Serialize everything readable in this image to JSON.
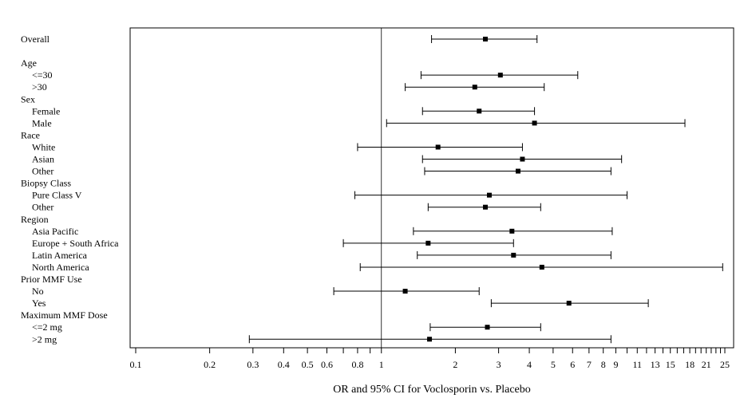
{
  "chart_data": {
    "type": "forest",
    "xlabel": "OR and 95% CI for Voclosporin vs. Placebo",
    "xscale": "log",
    "xlim": [
      0.095,
      26
    ],
    "reference_line": 1,
    "grid": false,
    "ticks": [
      {
        "value": 0.1,
        "label": "0.1"
      },
      {
        "value": 0.2,
        "label": "0.2"
      },
      {
        "value": 0.3,
        "label": "0.3"
      },
      {
        "value": 0.4,
        "label": "0.4"
      },
      {
        "value": 0.5,
        "label": "0.5"
      },
      {
        "value": 0.6,
        "label": "0.6"
      },
      {
        "value": 0.8,
        "label": "0.8"
      },
      {
        "value": 1,
        "label": "1"
      },
      {
        "value": 2,
        "label": "2"
      },
      {
        "value": 3,
        "label": "3"
      },
      {
        "value": 4,
        "label": "4"
      },
      {
        "value": 5,
        "label": "5"
      },
      {
        "value": 6,
        "label": "6"
      },
      {
        "value": 7,
        "label": "7"
      },
      {
        "value": 8,
        "label": "8"
      },
      {
        "value": 9,
        "label": "9"
      },
      {
        "value": 11,
        "label": "11"
      },
      {
        "value": 13,
        "label": "13"
      },
      {
        "value": 15,
        "label": "15"
      },
      {
        "value": 18,
        "label": "18"
      },
      {
        "value": 21,
        "label": "21"
      },
      {
        "value": 25,
        "label": "25"
      }
    ],
    "minor_ticks": [
      0.7,
      0.9,
      10,
      12,
      14,
      16,
      17,
      19,
      20,
      22,
      23,
      24
    ],
    "rows": [
      {
        "label": "Overall",
        "header": false,
        "indent": false,
        "or": 2.65,
        "lo": 1.6,
        "hi": 4.3
      },
      {
        "label": "",
        "header": true,
        "indent": false,
        "spacer": true
      },
      {
        "label": "Age",
        "header": true,
        "indent": false
      },
      {
        "label": "<=30",
        "header": false,
        "indent": true,
        "or": 3.05,
        "lo": 1.45,
        "hi": 6.3
      },
      {
        "label": ">30",
        "header": false,
        "indent": true,
        "or": 2.4,
        "lo": 1.25,
        "hi": 4.6
      },
      {
        "label": "Sex",
        "header": true,
        "indent": false
      },
      {
        "label": "Female",
        "header": false,
        "indent": true,
        "or": 2.5,
        "lo": 1.47,
        "hi": 4.2
      },
      {
        "label": "Male",
        "header": false,
        "indent": true,
        "or": 4.2,
        "lo": 1.05,
        "hi": 17.2
      },
      {
        "label": "Race",
        "header": true,
        "indent": false
      },
      {
        "label": "White",
        "header": false,
        "indent": true,
        "or": 1.7,
        "lo": 0.8,
        "hi": 3.75
      },
      {
        "label": "Asian",
        "header": false,
        "indent": true,
        "or": 3.75,
        "lo": 1.47,
        "hi": 9.5
      },
      {
        "label": "Other",
        "header": false,
        "indent": true,
        "or": 3.6,
        "lo": 1.5,
        "hi": 8.6
      },
      {
        "label": "Biopsy Class",
        "header": true,
        "indent": false
      },
      {
        "label": "Pure Class V",
        "header": false,
        "indent": true,
        "or": 2.75,
        "lo": 0.78,
        "hi": 10.0
      },
      {
        "label": "Other",
        "header": false,
        "indent": true,
        "or": 2.65,
        "lo": 1.55,
        "hi": 4.45
      },
      {
        "label": "Region",
        "header": true,
        "indent": false
      },
      {
        "label": "Asia Pacific",
        "header": false,
        "indent": true,
        "or": 3.4,
        "lo": 1.35,
        "hi": 8.7
      },
      {
        "label": "Europe + South Africa",
        "header": false,
        "indent": true,
        "or": 1.55,
        "lo": 0.7,
        "hi": 3.45
      },
      {
        "label": "Latin America",
        "header": false,
        "indent": true,
        "or": 3.45,
        "lo": 1.4,
        "hi": 8.6
      },
      {
        "label": "North America",
        "header": false,
        "indent": true,
        "or": 4.5,
        "lo": 0.82,
        "hi": 24.5
      },
      {
        "label": "Prior MMF Use",
        "header": true,
        "indent": false
      },
      {
        "label": "No",
        "header": false,
        "indent": true,
        "or": 1.25,
        "lo": 0.64,
        "hi": 2.5
      },
      {
        "label": "Yes",
        "header": false,
        "indent": true,
        "or": 5.8,
        "lo": 2.8,
        "hi": 12.2
      },
      {
        "label": "Maximum MMF Dose",
        "header": true,
        "indent": false
      },
      {
        "label": "<=2 mg",
        "header": false,
        "indent": true,
        "or": 2.7,
        "lo": 1.58,
        "hi": 4.45
      },
      {
        "label": ">2 mg",
        "header": false,
        "indent": true,
        "or": 1.57,
        "lo": 0.29,
        "hi": 8.6
      }
    ]
  }
}
